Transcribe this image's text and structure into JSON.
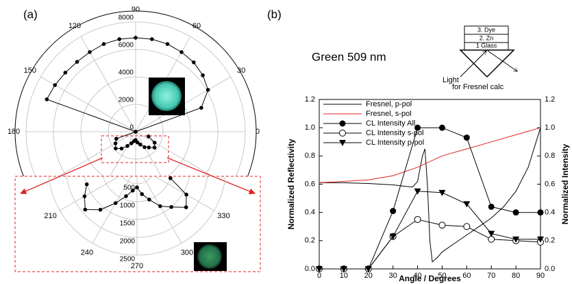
{
  "chart_data": [
    {
      "type": "polar",
      "panel_label": "(a)",
      "theta": [
        0,
        20,
        30,
        40,
        50,
        60,
        70,
        80,
        90,
        100,
        110,
        120,
        130,
        140,
        150,
        160,
        180,
        200,
        210,
        220,
        230,
        240,
        250,
        260,
        270,
        280,
        290,
        300,
        310,
        320,
        330,
        340
      ],
      "values": [
        0,
        5100,
        6100,
        6400,
        6600,
        6700,
        6800,
        6850,
        6850,
        6850,
        6800,
        6700,
        6650,
        6700,
        6800,
        6900,
        0,
        1500,
        1700,
        1900,
        1600,
        1200,
        900,
        700,
        600,
        800,
        1000,
        1300,
        1500,
        1800,
        1600,
        1000
      ],
      "color": "#000000",
      "rlim": [
        0,
        8000
      ],
      "rticks": [
        0,
        2000,
        4000,
        6000,
        8000
      ],
      "thetaticks": [
        0,
        30,
        60,
        90,
        120,
        150,
        180,
        210,
        240,
        270,
        300,
        330
      ]
    },
    {
      "type": "polar",
      "theta": [
        200,
        210,
        220,
        230,
        240,
        250,
        260,
        270,
        280,
        290,
        300,
        310,
        320,
        330,
        340
      ],
      "values": [
        1500,
        1700,
        1900,
        1600,
        1200,
        900,
        700,
        600,
        800,
        1000,
        1300,
        1500,
        1800,
        1600,
        1000
      ],
      "color": "#000000",
      "rlim": [
        0,
        2500
      ],
      "rticks": [
        500,
        1000,
        1500,
        2000,
        2500
      ],
      "thetaticks": [
        210,
        240,
        270,
        300,
        330
      ]
    },
    {
      "type": "line",
      "panel_label": "(b)",
      "annotation": "Green 509 nm",
      "x_label": "Angle / Degrees",
      "y_label": "Normalized Reflectivity",
      "y2_label": "Normalized Intensity",
      "x": [
        0,
        10,
        20,
        30,
        40,
        50,
        60,
        70,
        80,
        90
      ],
      "series": [
        {
          "name": "Fresnel, p-pol",
          "color": "#000000",
          "marker": "none",
          "x": [
            0,
            10,
            20,
            30,
            35,
            38,
            40,
            42,
            43,
            44,
            45,
            46,
            48,
            50,
            55,
            60,
            65,
            70,
            75,
            80,
            85,
            90
          ],
          "values": [
            0.61,
            0.61,
            0.605,
            0.595,
            0.585,
            0.58,
            0.62,
            0.8,
            0.85,
            0.6,
            0.2,
            0.05,
            0.08,
            0.12,
            0.18,
            0.24,
            0.3,
            0.36,
            0.44,
            0.55,
            0.72,
            1.0
          ]
        },
        {
          "name": "Fresnel, s-pol",
          "color": "#e02020",
          "marker": "none",
          "x": [
            0,
            10,
            20,
            30,
            40,
            50,
            60,
            70,
            80,
            90
          ],
          "values": [
            0.61,
            0.62,
            0.63,
            0.66,
            0.72,
            0.8,
            0.85,
            0.9,
            0.95,
            1.0
          ]
        },
        {
          "name": "CL Intensity All",
          "color": "#000000",
          "marker": "circle",
          "axis": "y2",
          "values": [
            0,
            0,
            0,
            0.41,
            1.0,
            1.0,
            0.93,
            0.44,
            0.4,
            0.4
          ]
        },
        {
          "name": "CL Intensity s-pol",
          "color": "#000000",
          "marker": "open-circle",
          "axis": "y2",
          "values": [
            0,
            0,
            0,
            0.23,
            0.35,
            0.31,
            0.3,
            0.21,
            0.2,
            0.19
          ]
        },
        {
          "name": "CL Intensity p-pol",
          "color": "#000000",
          "marker": "triangle-down",
          "axis": "y2",
          "values": [
            0,
            0,
            0,
            0.23,
            0.55,
            0.54,
            0.46,
            0.25,
            0.21,
            0.21
          ]
        }
      ],
      "xlim": [
        0,
        90
      ],
      "xticks": [
        0,
        10,
        20,
        30,
        40,
        50,
        60,
        70,
        80,
        90
      ],
      "ylim": [
        0,
        1.2
      ],
      "yticks": [
        {
          "value": 0,
          "label": "0.0"
        },
        0.2,
        0.4,
        0.6,
        0.8,
        {
          "value": 1,
          "label": "1.0"
        },
        1.2
      ],
      "y2lim": [
        0,
        1.2
      ],
      "y2ticks": [
        {
          "value": 0,
          "label": "0.0"
        },
        0.2,
        0.4,
        0.6,
        0.8,
        {
          "value": 1,
          "label": "1.0"
        },
        1.2
      ]
    }
  ],
  "diagram": {
    "layers": [
      "3. Dye",
      "2. Zn",
      "1 Glass"
    ],
    "light_label": "Light",
    "caption": "for Fresnel calc"
  }
}
